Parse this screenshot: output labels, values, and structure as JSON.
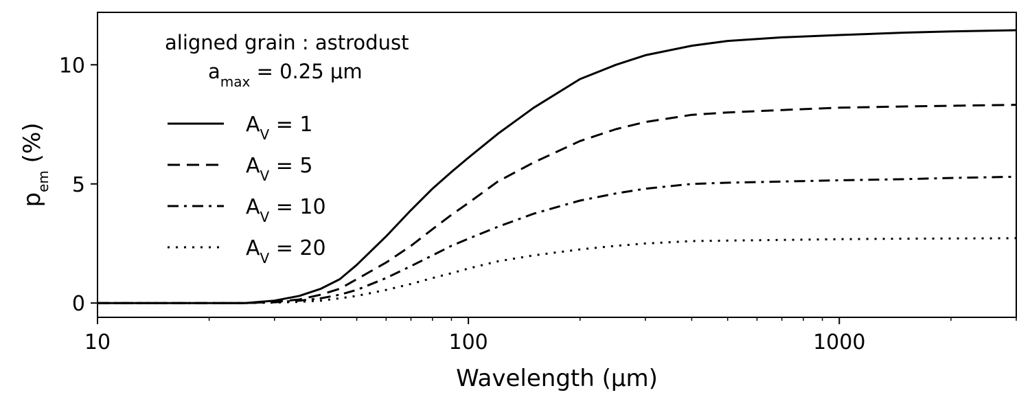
{
  "chart_data": {
    "type": "line",
    "title": "",
    "xlabel": "Wavelength (μm)",
    "ylabel": {
      "base": "p",
      "sub": "em",
      "suffix": " (%)"
    },
    "xscale": "log",
    "xlim": [
      10,
      3000
    ],
    "ylim": [
      -0.6,
      12.2
    ],
    "xticks": [
      10,
      100,
      1000
    ],
    "xtick_labels": [
      "10",
      "100",
      "1000"
    ],
    "yticks": [
      0,
      5,
      10
    ],
    "ytick_labels": [
      "0",
      "5",
      "10"
    ],
    "grid": false,
    "legend_position": "upper-left",
    "annotation": {
      "line1": "aligned grain : astrodust",
      "line2_base": "a",
      "line2_sub": "max",
      "line2_rest": " = 0.25 μm"
    },
    "x": [
      10,
      15,
      20,
      25,
      30,
      35,
      40,
      45,
      50,
      60,
      70,
      80,
      90,
      100,
      120,
      150,
      200,
      250,
      300,
      400,
      500,
      700,
      1000,
      1500,
      2000,
      3000
    ],
    "series": [
      {
        "name": "A_V = 1",
        "label_base": "A",
        "label_sub": "V",
        "label_rest": " = 1",
        "dash": "solid",
        "values": [
          0,
          0,
          0,
          0,
          0.1,
          0.3,
          0.6,
          1.0,
          1.6,
          2.8,
          3.9,
          4.8,
          5.5,
          6.1,
          7.1,
          8.2,
          9.4,
          10.0,
          10.4,
          10.8,
          11.0,
          11.15,
          11.25,
          11.35,
          11.4,
          11.45
        ]
      },
      {
        "name": "A_V = 5",
        "label_base": "A",
        "label_sub": "V",
        "label_rest": " = 5",
        "dash": "dashed",
        "values": [
          0,
          0,
          0,
          0,
          0.05,
          0.15,
          0.35,
          0.6,
          1.0,
          1.7,
          2.4,
          3.1,
          3.7,
          4.2,
          5.1,
          5.9,
          6.8,
          7.3,
          7.6,
          7.9,
          8.0,
          8.1,
          8.2,
          8.25,
          8.28,
          8.32
        ]
      },
      {
        "name": "A_V = 10",
        "label_base": "A",
        "label_sub": "V",
        "label_rest": " = 10",
        "dash": "dashdot",
        "values": [
          0,
          0,
          0,
          0,
          0.03,
          0.1,
          0.2,
          0.35,
          0.55,
          1.05,
          1.55,
          2.0,
          2.4,
          2.7,
          3.2,
          3.75,
          4.3,
          4.6,
          4.8,
          5.0,
          5.05,
          5.1,
          5.15,
          5.2,
          5.25,
          5.3
        ]
      },
      {
        "name": "A_V = 20",
        "label_base": "A",
        "label_sub": "V",
        "label_rest": " = 20",
        "dash": "dotted",
        "values": [
          0,
          0,
          0,
          0,
          0.02,
          0.05,
          0.1,
          0.2,
          0.3,
          0.55,
          0.8,
          1.05,
          1.25,
          1.45,
          1.75,
          2.0,
          2.25,
          2.4,
          2.5,
          2.6,
          2.62,
          2.65,
          2.68,
          2.7,
          2.71,
          2.72
        ]
      }
    ]
  }
}
